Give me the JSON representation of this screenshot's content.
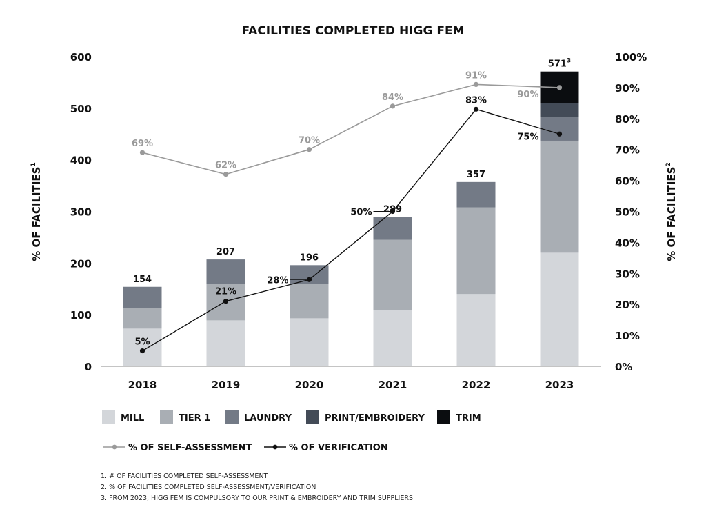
{
  "chart_data": {
    "type": "bar",
    "title": "FACILITIES COMPLETED HIGG FEM",
    "ylabel": "% OF FACILITIES",
    "ylabel_sup": "1",
    "y2label": "% OF FACILITIES",
    "y2label_sup": "2",
    "ylim": [
      0,
      600
    ],
    "y2lim": [
      0,
      100
    ],
    "yticks": [
      "0",
      "100",
      "200",
      "300",
      "400",
      "500",
      "600"
    ],
    "y2ticks": [
      "0%",
      "10%",
      "20%",
      "30%",
      "40%",
      "50%",
      "60%",
      "70%",
      "80%",
      "90%",
      "100%"
    ],
    "categories": [
      "2018",
      "2019",
      "2020",
      "2021",
      "2022",
      "2023"
    ],
    "stacked_series": [
      {
        "name": "MILL",
        "color": "#d3d6da",
        "values": [
          73,
          89,
          93,
          109,
          140,
          220
        ]
      },
      {
        "name": "TIER 1",
        "color": "#a9aeb4",
        "values": [
          40,
          71,
          66,
          136,
          168,
          217
        ]
      },
      {
        "name": "LAUNDRY",
        "color": "#737a86",
        "values": [
          41,
          47,
          37,
          44,
          49,
          45
        ]
      },
      {
        "name": "PRINT/EMBROIDERY",
        "color": "#434b57",
        "values": [
          0,
          0,
          0,
          0,
          0,
          28
        ]
      },
      {
        "name": "TRIM",
        "color": "#0b0d10",
        "values": [
          0,
          0,
          0,
          0,
          0,
          61
        ]
      }
    ],
    "totals": [
      "154",
      "207",
      "196",
      "289",
      "357",
      "571"
    ],
    "total_last_sup": "3",
    "line_series": [
      {
        "name": "% OF SELF-ASSESSMENT",
        "color": "#9a9a9a",
        "values": [
          69,
          62,
          70,
          84,
          91,
          90
        ],
        "labels": [
          "69%",
          "62%",
          "70%",
          "84%",
          "91%",
          "90%"
        ]
      },
      {
        "name": "% OF VERIFICATION",
        "color": "#111111",
        "values": [
          5,
          21,
          28,
          50,
          83,
          75
        ],
        "labels": [
          "5%",
          "21%",
          "28%",
          "50%",
          "83%",
          "75%"
        ]
      }
    ],
    "legend_position": "bottom-left",
    "footnotes": [
      "1. # OF FACILITIES COMPLETED SELF-ASSESSMENT",
      "2. % OF FACILITIES COMPLETED SELF-ASSESSMENT/VERIFICATION",
      "3. FROM 2023, HIGG FEM IS COMPULSORY TO OUR PRINT & EMBROIDERY AND TRIM SUPPLIERS"
    ]
  }
}
